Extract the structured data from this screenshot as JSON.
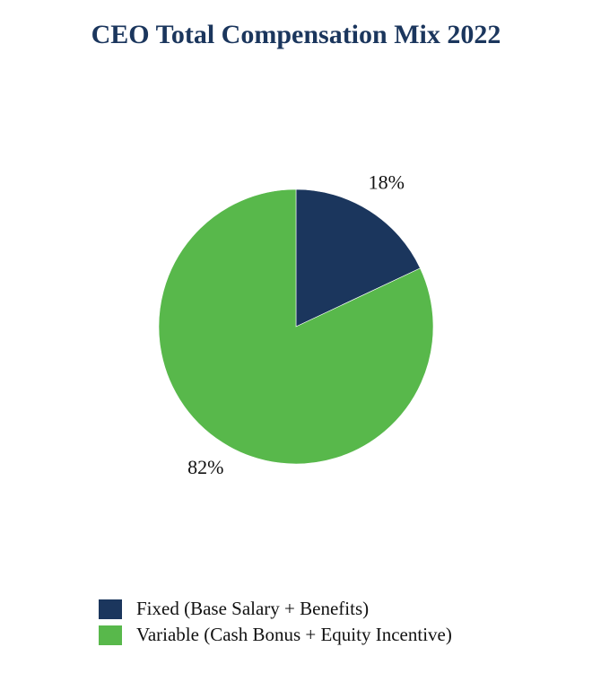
{
  "chart_data": {
    "type": "pie",
    "title": "CEO Total Compensation Mix 2022",
    "slices": [
      {
        "name": "Fixed (Base Salary + Benefits)",
        "value": 18,
        "label": "18%",
        "color": "#1b365d"
      },
      {
        "name": "Variable (Cash Bonus + Equity Incentive)",
        "value": 82,
        "label": "82%",
        "color": "#58b84b"
      }
    ],
    "legend_position": "bottom"
  }
}
